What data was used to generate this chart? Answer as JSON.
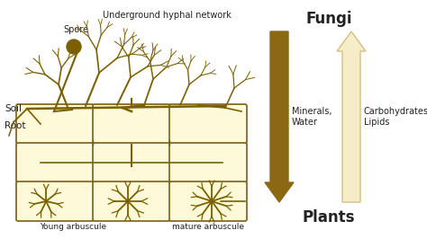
{
  "bg_color": "#ffffff",
  "cell_color": "#fef9d8",
  "cell_edge_color": "#7a6010",
  "fungi_color": "#7a6000",
  "arrow_down_color": "#8b6914",
  "arrow_up_color": "#f5edc8",
  "arrow_up_edge": "#d4c080",
  "text_color": "#222222",
  "soil_label": "Soil",
  "root_label": "Root",
  "spore_label": "Spore",
  "hyphal_label": "Underground hyphal network",
  "young_label": "Young arbuscule",
  "mature_label": "mature arbuscule",
  "fungi_label": "Fungi",
  "plants_label": "Plants",
  "minerals_label": "Minerals,\nWater",
  "carbo_label": "Carbohydrates,\nLipids",
  "figw": 4.74,
  "figh": 2.66,
  "dpi": 100
}
